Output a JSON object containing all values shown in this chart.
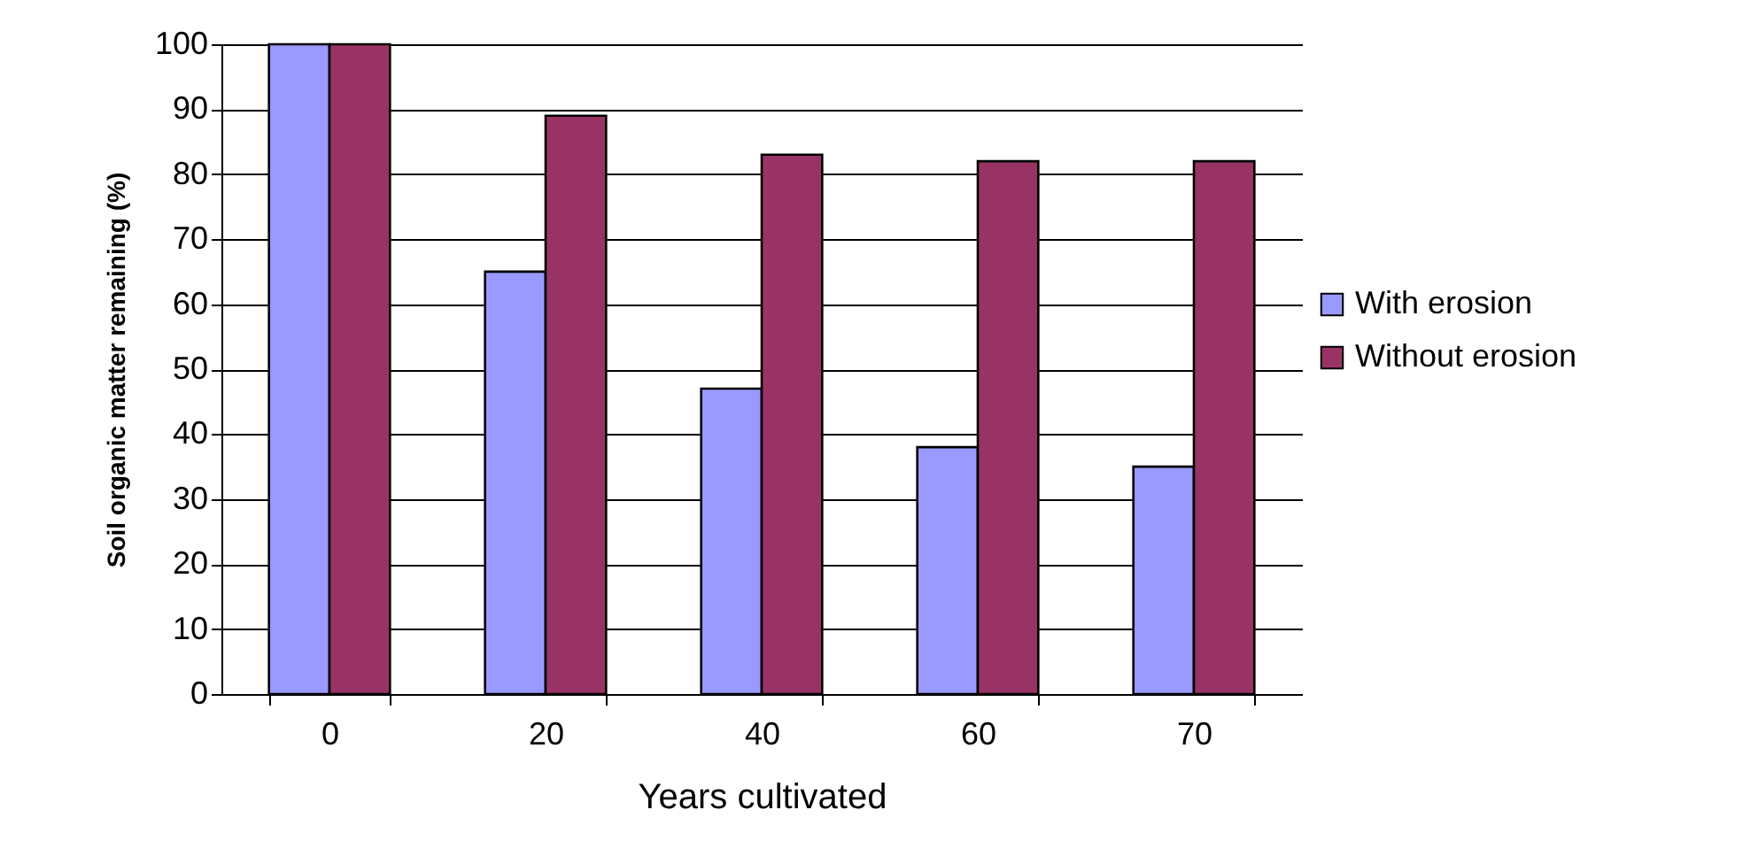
{
  "chart_data": {
    "type": "bar",
    "xlabel": "Years cultivated",
    "ylabel": "Soil organic matter remaining (%)",
    "categories": [
      "0",
      "20",
      "40",
      "60",
      "70"
    ],
    "series": [
      {
        "name": "With erosion",
        "color": "#9999ff",
        "values": [
          100,
          65,
          47,
          38,
          35
        ]
      },
      {
        "name": "Without erosion",
        "color": "#993366",
        "values": [
          100,
          89,
          83,
          82,
          82
        ]
      }
    ],
    "ylim": [
      0,
      100
    ],
    "yticks": [
      0,
      10,
      20,
      30,
      40,
      50,
      60,
      70,
      80,
      90,
      100
    ],
    "grid": "y",
    "legend": "right"
  }
}
